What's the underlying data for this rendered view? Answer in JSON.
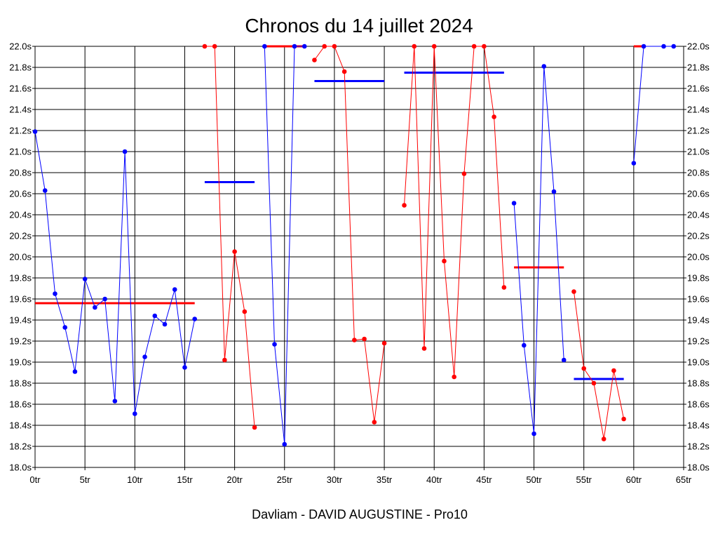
{
  "chart_data": {
    "type": "line",
    "title": "Chronos du 14 juillet 2024",
    "xlabel": "Davliam - DAVID AUGUSTINE - Pro10",
    "ylabel": "",
    "xlim": [
      0,
      65
    ],
    "ylim": [
      18.0,
      22.0
    ],
    "grid": true,
    "x_ticks": [
      {
        "value": 0,
        "label": "0tr"
      },
      {
        "value": 5,
        "label": "5tr"
      },
      {
        "value": 10,
        "label": "10tr"
      },
      {
        "value": 15,
        "label": "15tr"
      },
      {
        "value": 20,
        "label": "20tr"
      },
      {
        "value": 25,
        "label": "25tr"
      },
      {
        "value": 30,
        "label": "30tr"
      },
      {
        "value": 35,
        "label": "35tr"
      },
      {
        "value": 40,
        "label": "40tr"
      },
      {
        "value": 45,
        "label": "45tr"
      },
      {
        "value": 50,
        "label": "50tr"
      },
      {
        "value": 55,
        "label": "55tr"
      },
      {
        "value": 60,
        "label": "60tr"
      },
      {
        "value": 65,
        "label": "65tr"
      }
    ],
    "y_ticks": [
      {
        "value": 18.0,
        "label": "18.0s"
      },
      {
        "value": 18.2,
        "label": "18.2s"
      },
      {
        "value": 18.4,
        "label": "18.4s"
      },
      {
        "value": 18.6,
        "label": "18.6s"
      },
      {
        "value": 18.8,
        "label": "18.8s"
      },
      {
        "value": 19.0,
        "label": "19.0s"
      },
      {
        "value": 19.2,
        "label": "19.2s"
      },
      {
        "value": 19.4,
        "label": "19.4s"
      },
      {
        "value": 19.6,
        "label": "19.6s"
      },
      {
        "value": 19.8,
        "label": "19.8s"
      },
      {
        "value": 20.0,
        "label": "20.0s"
      },
      {
        "value": 20.2,
        "label": "20.2s"
      },
      {
        "value": 20.4,
        "label": "20.4s"
      },
      {
        "value": 20.6,
        "label": "20.6s"
      },
      {
        "value": 20.8,
        "label": "20.8s"
      },
      {
        "value": 21.0,
        "label": "21.0s"
      },
      {
        "value": 21.2,
        "label": "21.2s"
      },
      {
        "value": 21.4,
        "label": "21.4s"
      },
      {
        "value": 21.6,
        "label": "21.6s"
      },
      {
        "value": 21.8,
        "label": "21.8s"
      },
      {
        "value": 22.0,
        "label": "22.0s"
      }
    ],
    "series": [
      {
        "color": "#0000ff",
        "values": [
          [
            0,
            21.19
          ],
          [
            1,
            20.63
          ],
          [
            2,
            19.65
          ],
          [
            3,
            19.33
          ],
          [
            4,
            18.91
          ],
          [
            5,
            19.79
          ],
          [
            6,
            19.52
          ],
          [
            7,
            19.6
          ],
          [
            8,
            18.63
          ],
          [
            9,
            21.0
          ],
          [
            10,
            18.51
          ],
          [
            11,
            19.05
          ],
          [
            12,
            19.44
          ],
          [
            13,
            19.36
          ],
          [
            14,
            19.69
          ],
          [
            15,
            18.95
          ],
          [
            16,
            19.41
          ]
        ]
      },
      {
        "color": "#ff0000",
        "values": [
          [
            17,
            22.0
          ],
          [
            18,
            22.0
          ],
          [
            19,
            19.02
          ],
          [
            20,
            20.05
          ],
          [
            21,
            19.48
          ],
          [
            22,
            18.38
          ]
        ]
      },
      {
        "color": "#0000ff",
        "values": [
          [
            23,
            22.0
          ],
          [
            24,
            19.17
          ],
          [
            25,
            18.22
          ],
          [
            26,
            22.0
          ],
          [
            27,
            22.0
          ]
        ]
      },
      {
        "color": "#ff0000",
        "values": [
          [
            28,
            21.87
          ],
          [
            29,
            22.0
          ],
          [
            30,
            22.0
          ],
          [
            31,
            21.76
          ],
          [
            32,
            19.21
          ],
          [
            33,
            19.22
          ],
          [
            34,
            18.43
          ],
          [
            35,
            19.18
          ]
        ]
      },
      {
        "color": "#ff0000",
        "values": [
          [
            37,
            20.49
          ],
          [
            38,
            22.0
          ],
          [
            39,
            19.13
          ],
          [
            40,
            22.0
          ],
          [
            41,
            19.96
          ],
          [
            42,
            18.86
          ],
          [
            43,
            20.79
          ],
          [
            44,
            22.0
          ],
          [
            45,
            22.0
          ],
          [
            46,
            21.33
          ],
          [
            47,
            19.71
          ]
        ]
      },
      {
        "color": "#0000ff",
        "values": [
          [
            48,
            20.51
          ],
          [
            49,
            19.16
          ],
          [
            50,
            18.32
          ],
          [
            51,
            21.81
          ],
          [
            52,
            20.62
          ],
          [
            53,
            19.02
          ]
        ]
      },
      {
        "color": "#ff0000",
        "values": [
          [
            54,
            19.67
          ],
          [
            55,
            18.94
          ],
          [
            56,
            18.8
          ],
          [
            57,
            18.27
          ],
          [
            58,
            18.92
          ],
          [
            59,
            18.46
          ]
        ]
      },
      {
        "color": "#0000ff",
        "values": [
          [
            60,
            20.89
          ],
          [
            61,
            22.0
          ],
          [
            63,
            22.0
          ],
          [
            64,
            22.0
          ]
        ]
      }
    ],
    "averages": [
      {
        "color": "#ff0000",
        "x_start": 0,
        "x_end": 16,
        "y": 19.56
      },
      {
        "color": "#0000ff",
        "x_start": 17,
        "x_end": 22,
        "y": 20.71
      },
      {
        "color": "#ff0000",
        "x_start": 23,
        "x_end": 27,
        "y": 22.0
      },
      {
        "color": "#0000ff",
        "x_start": 28,
        "x_end": 35,
        "y": 21.67
      },
      {
        "color": "#0000ff",
        "x_start": 37,
        "x_end": 47,
        "y": 21.75
      },
      {
        "color": "#ff0000",
        "x_start": 48,
        "x_end": 53,
        "y": 19.9
      },
      {
        "color": "#0000ff",
        "x_start": 54,
        "x_end": 59,
        "y": 18.84
      },
      {
        "color": "#ff0000",
        "x_start": 60,
        "x_end": 61,
        "y": 22.0
      }
    ]
  }
}
